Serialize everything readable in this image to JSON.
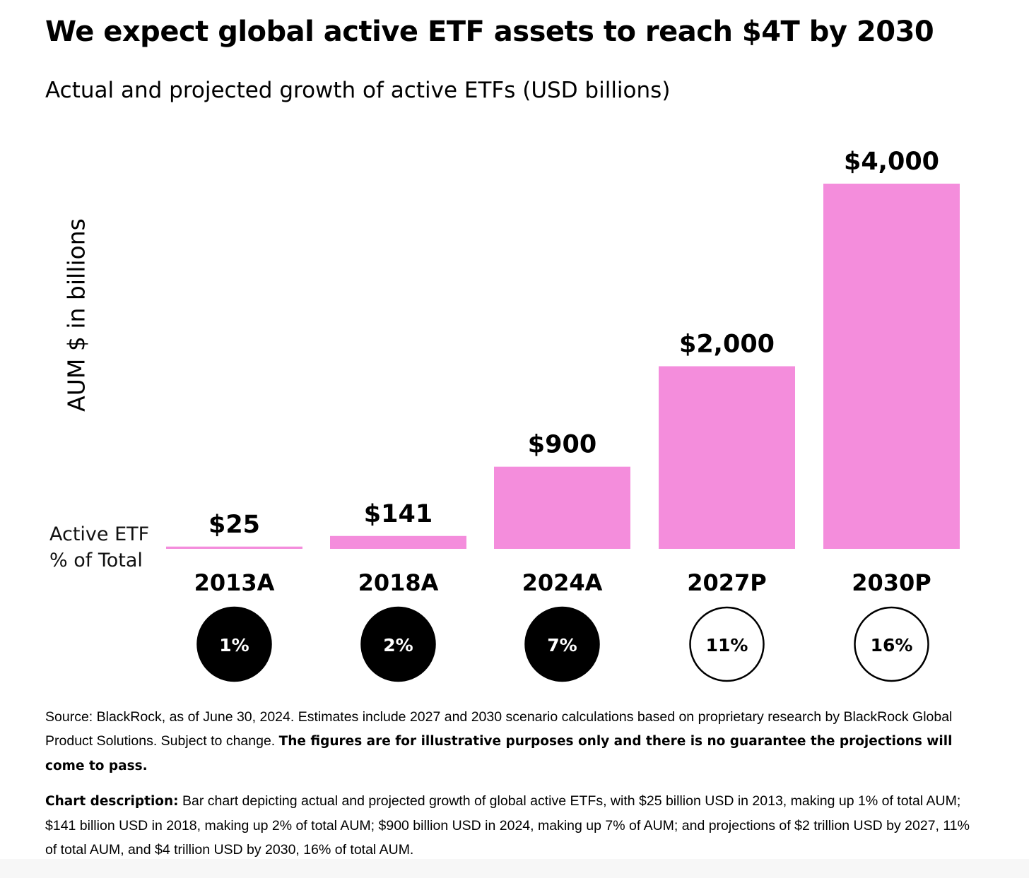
{
  "header": {
    "title": "We expect global active ETF assets to reach $4T by 2030",
    "subtitle": "Actual and projected growth of active ETFs (USD billions)"
  },
  "colors": {
    "bar": "#f48ddc",
    "circle_actual_fill": "#000000",
    "circle_projected_fill": "#ffffff",
    "text": "#000000"
  },
  "chart_data": {
    "type": "bar",
    "title": "We expect global active ETF assets to reach $4T by 2030",
    "subtitle": "Actual and projected growth of active ETFs (USD billions)",
    "ylabel": "AUM $ in billions",
    "categories": [
      "2013A",
      "2018A",
      "2024A",
      "2027P",
      "2030P"
    ],
    "values": [
      25,
      141,
      900,
      2000,
      4000
    ],
    "value_labels": [
      "$25",
      "$141",
      "$900",
      "$2,000",
      "$4,000"
    ],
    "ylim": [
      0,
      4000
    ],
    "grid": false,
    "secondary_row_label": "Active ETF % of Total",
    "active_pct_of_total": [
      "1%",
      "2%",
      "7%",
      "11%",
      "16%"
    ],
    "projected": [
      false,
      false,
      false,
      true,
      true
    ]
  },
  "footer": {
    "source_text": "Source: BlackRock, as of June 30, 2024. Estimates include 2027 and 2030 scenario calculations based on proprietary research by BlackRock Global Product Solutions. Subject to change. ",
    "source_bold": "The figures are for illustrative purposes only and there is no guarantee the projections will come to pass.",
    "desc_bold": "Chart description:",
    "desc_text": " Bar chart depicting actual and projected growth of global active ETFs, with $25 billion USD in 2013, making up 1% of total AUM; $141 billion USD in 2018, making up 2% of total AUM; $900 billion USD in 2024, making up 7% of AUM; and projections of $2 trillion USD by 2027, 11% of total AUM, and $4 trillion USD by 2030, 16% of total AUM."
  }
}
